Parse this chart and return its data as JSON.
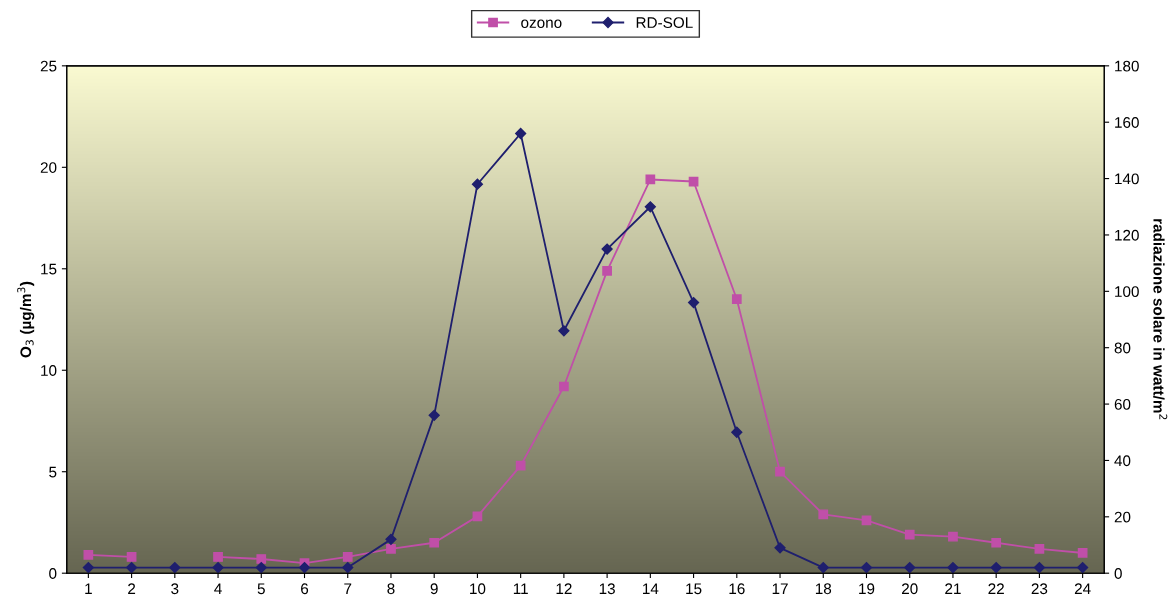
{
  "chart_data": {
    "type": "line",
    "ylabel": "O$_{3}$ (µg/m$^{3}$)",
    "y2label": "radiazione solare in watt/m$^{2}$",
    "categories": [
      "1",
      "2",
      "3",
      "4",
      "5",
      "6",
      "7",
      "8",
      "9",
      "10",
      "11",
      "12",
      "13",
      "14",
      "15",
      "16",
      "17",
      "18",
      "19",
      "20",
      "21",
      "22",
      "23",
      "24"
    ],
    "series": [
      {
        "name": "ozono",
        "color": "#c04fa8",
        "marker": "square",
        "values": [
          0.9,
          0.8,
          null,
          0.8,
          0.7,
          0.5,
          0.8,
          1.2,
          1.5,
          2.8,
          5.3,
          9.2,
          14.9,
          19.4,
          19.3,
          13.5,
          5.0,
          2.9,
          2.6,
          1.9,
          1.8,
          1.5,
          1.2,
          1.0
        ]
      },
      {
        "name": "RD-SOL",
        "color": "#1f1f6e",
        "marker": "diamond",
        "axis": "y2",
        "values": [
          2,
          2,
          2,
          2,
          2,
          2,
          2,
          12,
          56,
          138,
          156,
          86,
          115,
          130,
          96,
          50,
          9,
          2,
          2,
          2,
          2,
          2,
          2,
          2
        ]
      }
    ],
    "ylim": [
      0,
      25
    ],
    "yticks": [
      0,
      5,
      10,
      15,
      20,
      25
    ],
    "y2lim": [
      0,
      180
    ],
    "y2ticks": [
      0,
      20,
      40,
      60,
      80,
      100,
      120,
      140,
      160,
      180
    ],
    "grid": false,
    "legend": "top",
    "line_style": "solid"
  }
}
